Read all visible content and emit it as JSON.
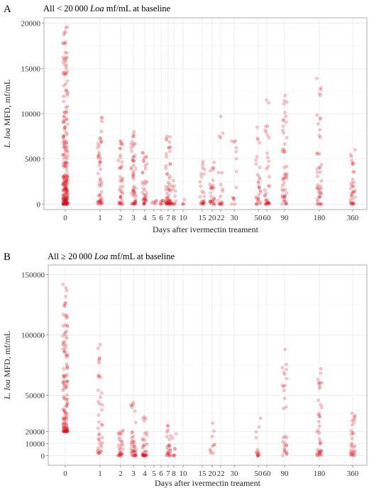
{
  "chart_data": [
    {
      "type": "scatter",
      "panel_label": "A",
      "title": "All < 20 000 Loa mf/mL at baseline",
      "title_parts": [
        "All < 20 000 ",
        "Loa",
        " mf/mL at baseline"
      ],
      "ylabel_parts": [
        "L. loa",
        " MFD, mf/mL"
      ],
      "xlabel": "Days after ivermectin treament",
      "x_ticks": [
        "0",
        "1",
        "2",
        "3",
        "4",
        "5",
        "6",
        "7",
        "8",
        "10",
        "15",
        "20",
        "22",
        "30",
        "50",
        "60",
        "90",
        "180",
        "360"
      ],
      "y_ticks": [
        0,
        5000,
        10000,
        15000,
        20000
      ],
      "y_tick_labels": [
        "0",
        "5000",
        "10000",
        "15000",
        "20000"
      ],
      "ylim": [
        -600,
        20600
      ],
      "grid": true,
      "point_color": "#d9101e",
      "series": [
        {
          "x": "0",
          "count": 220,
          "min": 0,
          "max": 19600
        },
        {
          "x": "1",
          "count": 50,
          "min": 0,
          "max": 9600
        },
        {
          "x": "2",
          "count": 40,
          "min": 0,
          "max": 7000
        },
        {
          "x": "3",
          "count": 55,
          "min": 0,
          "max": 8000
        },
        {
          "x": "4",
          "count": 40,
          "min": 0,
          "max": 5700
        },
        {
          "x": "5",
          "count": 6,
          "min": 0,
          "max": 400
        },
        {
          "x": "6",
          "count": 8,
          "min": 0,
          "max": 400
        },
        {
          "x": "7",
          "count": 60,
          "min": 0,
          "max": 7500
        },
        {
          "x": "8",
          "count": 14,
          "min": 0,
          "max": 2600
        },
        {
          "x": "10",
          "count": 4,
          "min": 0,
          "max": 500
        },
        {
          "x": "15",
          "count": 25,
          "min": 0,
          "max": 4700
        },
        {
          "x": "20",
          "count": 30,
          "min": 0,
          "max": 4600
        },
        {
          "x": "22",
          "count": 20,
          "min": 0,
          "max": 9700
        },
        {
          "x": "30",
          "count": 14,
          "min": 0,
          "max": 7000
        },
        {
          "x": "50",
          "count": 30,
          "min": 0,
          "max": 8500
        },
        {
          "x": "60",
          "count": 35,
          "min": 0,
          "max": 11500
        },
        {
          "x": "90",
          "count": 50,
          "min": 0,
          "max": 12000
        },
        {
          "x": "180",
          "count": 45,
          "min": 0,
          "max": 13900
        },
        {
          "x": "360",
          "count": 35,
          "min": 0,
          "max": 6000
        }
      ]
    },
    {
      "type": "scatter",
      "panel_label": "B",
      "title": "All ≥ 20 000 Loa mf/mL at baseline",
      "title_parts": [
        "All ≥ 20 000 ",
        "Loa",
        " mf/mL at baseline"
      ],
      "ylabel_parts": [
        "L. loa",
        " MFD, mf/mL"
      ],
      "xlabel": "Days after ivermectin treament",
      "x_ticks": [
        "0",
        "1",
        "2",
        "3",
        "4",
        "5",
        "6",
        "7",
        "8",
        "10",
        "15",
        "20",
        "22",
        "30",
        "50",
        "60",
        "90",
        "180",
        "360"
      ],
      "y_ticks": [
        0,
        10000,
        20000,
        50000,
        100000,
        150000
      ],
      "y_tick_labels": [
        "0",
        "10000",
        "20000",
        "50000",
        "100000",
        "150000"
      ],
      "ylim": [
        -8000,
        158000
      ],
      "grid": true,
      "point_color": "#d9101e",
      "series": [
        {
          "x": "0",
          "count": 130,
          "min": 20000,
          "max": 142000
        },
        {
          "x": "1",
          "count": 40,
          "min": 2000,
          "max": 92000
        },
        {
          "x": "2",
          "count": 30,
          "min": 0,
          "max": 21000
        },
        {
          "x": "3",
          "count": 40,
          "min": 0,
          "max": 44000
        },
        {
          "x": "4",
          "count": 35,
          "min": 0,
          "max": 32000
        },
        {
          "x": "7",
          "count": 25,
          "min": 0,
          "max": 25000
        },
        {
          "x": "8",
          "count": 8,
          "min": 0,
          "max": 18000
        },
        {
          "x": "20",
          "count": 10,
          "min": 2000,
          "max": 27000
        },
        {
          "x": "50",
          "count": 15,
          "min": 0,
          "max": 31000
        },
        {
          "x": "90",
          "count": 30,
          "min": 0,
          "max": 88000
        },
        {
          "x": "180",
          "count": 40,
          "min": 0,
          "max": 72000
        },
        {
          "x": "360",
          "count": 30,
          "min": 0,
          "max": 35000
        }
      ]
    }
  ]
}
